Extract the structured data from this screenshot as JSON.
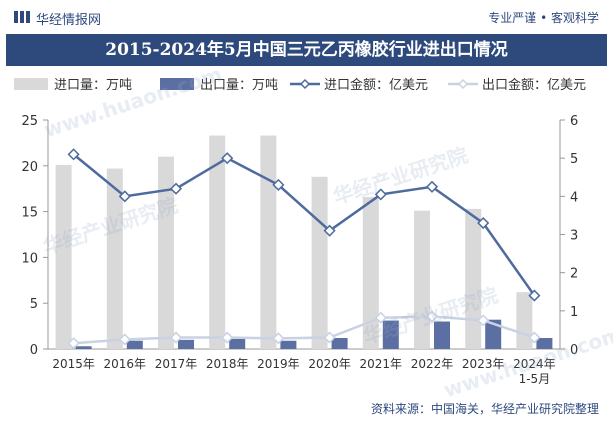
{
  "header": {
    "brand": "华经情报网",
    "slogan": "专业严谨 • 客观科学",
    "title": "2015-2024年5月中国三元乙丙橡胶行业进出口情况"
  },
  "footer": {
    "source": "资料来源：中国海关，华经产业研究院整理"
  },
  "watermark": {
    "cn": "华经产业研究院",
    "url": "www.huaon.com"
  },
  "colors": {
    "brand": "#2e4a7d",
    "import_volume": "#d9d9d9",
    "export_volume": "#5b6fa3",
    "import_value": "#4e6a9e",
    "export_value": "#c9d2e3"
  },
  "chart_data": {
    "type": "bar",
    "categories": [
      "2015年",
      "2016年",
      "2017年",
      "2018年",
      "2019年",
      "2020年",
      "2021年",
      "2022年",
      "2023年",
      "2024年\n1-5月"
    ],
    "series": [
      {
        "name": "进口量：万吨",
        "type": "bar",
        "axis": "left",
        "values": [
          20.1,
          19.7,
          21.0,
          23.3,
          23.3,
          18.8,
          16.6,
          15.1,
          15.3,
          6.2
        ]
      },
      {
        "name": "出口量：万吨",
        "type": "bar",
        "axis": "left",
        "values": [
          0.3,
          0.9,
          1.0,
          1.1,
          0.9,
          1.2,
          3.1,
          3.0,
          3.2,
          1.2
        ]
      },
      {
        "name": "进口金额：亿美元",
        "type": "line",
        "axis": "right",
        "values": [
          5.1,
          4.0,
          4.2,
          5.0,
          4.3,
          3.1,
          4.05,
          4.25,
          3.3,
          1.4
        ]
      },
      {
        "name": "出口金额：亿美元",
        "type": "line",
        "axis": "right",
        "values": [
          0.15,
          0.25,
          0.3,
          0.3,
          0.28,
          0.3,
          0.82,
          0.85,
          0.75,
          0.3
        ]
      }
    ],
    "ylim_left": [
      0,
      25
    ],
    "yticks_left": [
      "0",
      "5",
      "10",
      "15",
      "20",
      "25"
    ],
    "ylim_right": [
      0,
      6
    ],
    "yticks_right": [
      "0",
      "1",
      "2",
      "3",
      "4",
      "5",
      "6"
    ],
    "legend_position": "top"
  }
}
